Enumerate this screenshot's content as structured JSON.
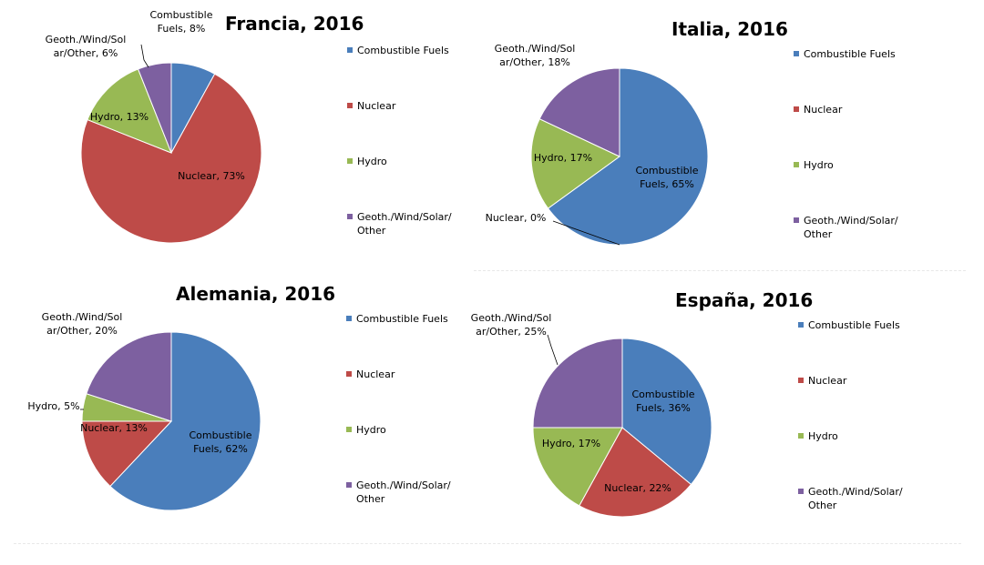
{
  "legend": {
    "labels": [
      "Combustible Fuels",
      "Nuclear",
      "Hydro",
      "Geoth./Wind/Solar/ Other"
    ]
  },
  "colors": {
    "Combustible Fuels": "#4a7ebb",
    "Nuclear": "#be4b48",
    "Hydro": "#98b954",
    "Geoth./Wind/Solar/Other": "#7d60a0"
  },
  "chart_data": [
    {
      "type": "pie",
      "title": "Francia, 2016",
      "categories": [
        "Combustible Fuels",
        "Nuclear",
        "Hydro",
        "Geoth./Wind/Solar/Other"
      ],
      "values": [
        8,
        73,
        13,
        6
      ],
      "data_labels": [
        [
          "Combustible",
          "Fuels, 8%"
        ],
        [
          "Nuclear, 73%"
        ],
        [
          "Hydro, 13%"
        ],
        [
          "Geoth./Wind/Sol",
          "ar/Other, 6%"
        ]
      ],
      "legend_position": "right"
    },
    {
      "type": "pie",
      "title": "Italia, 2016",
      "categories": [
        "Combustible Fuels",
        "Nuclear",
        "Hydro",
        "Geoth./Wind/Solar/Other"
      ],
      "values": [
        65,
        0,
        17,
        18
      ],
      "data_labels": [
        [
          "Combustible",
          "Fuels, 65%"
        ],
        [
          "Nuclear, 0%"
        ],
        [
          "Hydro, 17%"
        ],
        [
          "Geoth./Wind/Sol",
          "ar/Other, 18%"
        ]
      ],
      "legend_position": "right"
    },
    {
      "type": "pie",
      "title": "Alemania, 2016",
      "categories": [
        "Combustible Fuels",
        "Nuclear",
        "Hydro",
        "Geoth./Wind/Solar/Other"
      ],
      "values": [
        62,
        13,
        5,
        20
      ],
      "data_labels": [
        [
          "Combustible",
          "Fuels, 62%"
        ],
        [
          "Nuclear, 13%"
        ],
        [
          "Hydro, 5%"
        ],
        [
          "Geoth./Wind/Sol",
          "ar/Other, 20%"
        ]
      ],
      "legend_position": "right"
    },
    {
      "type": "pie",
      "title": "España, 2016",
      "categories": [
        "Combustible Fuels",
        "Nuclear",
        "Hydro",
        "Geoth./Wind/Solar/Other"
      ],
      "values": [
        36,
        22,
        17,
        25
      ],
      "data_labels": [
        [
          "Combustible",
          "Fuels, 36%"
        ],
        [
          "Nuclear, 22%"
        ],
        [
          "Hydro, 17%"
        ],
        [
          "Geoth./Wind/Sol",
          "ar/Other, 25%"
        ]
      ],
      "legend_position": "right"
    }
  ]
}
